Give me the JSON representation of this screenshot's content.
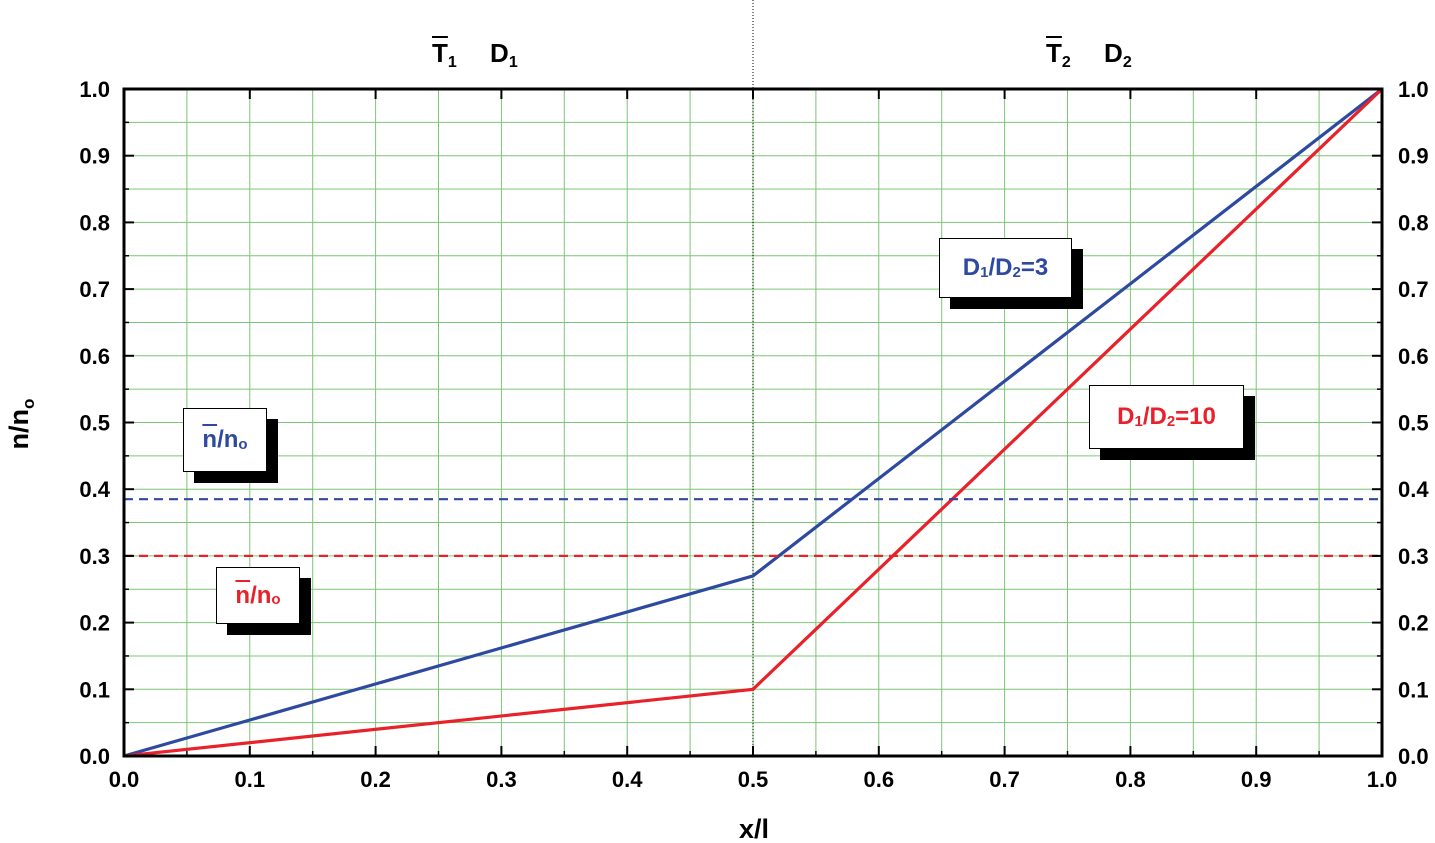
{
  "chart_data": {
    "type": "line",
    "xlabel": "x/l",
    "ylabel": "n/n",
    "ylabel_sub": "o",
    "xlim": [
      0.0,
      1.0
    ],
    "ylim": [
      0.0,
      1.0
    ],
    "x_ticks": [
      "0.0",
      "0.1",
      "0.2",
      "0.3",
      "0.4",
      "0.5",
      "0.6",
      "0.7",
      "0.8",
      "0.9",
      "1.0"
    ],
    "y_ticks": [
      "0.0",
      "0.1",
      "0.2",
      "0.3",
      "0.4",
      "0.5",
      "0.6",
      "0.7",
      "0.8",
      "0.9",
      "1.0"
    ],
    "grid": true,
    "colors": {
      "blue": "#2e4aa0",
      "red": "#e8212a",
      "grid": "#7cc576"
    },
    "series": [
      {
        "color": "#2e4aa0",
        "style": "solid",
        "x": [
          0.0,
          0.5,
          1.0
        ],
        "y": [
          0.0,
          0.27,
          1.0
        ]
      },
      {
        "color": "#e8212a",
        "style": "solid",
        "x": [
          0.0,
          0.5,
          1.0
        ],
        "y": [
          0.0,
          0.1,
          1.0
        ]
      },
      {
        "color": "#2e4aa0",
        "style": "dashed",
        "x": [
          0.0,
          1.0
        ],
        "y": [
          0.385,
          0.385
        ]
      },
      {
        "color": "#e8212a",
        "style": "dashed",
        "x": [
          0.0,
          1.0
        ],
        "y": [
          0.3,
          0.3
        ]
      }
    ],
    "vertical_marker_x": 0.5,
    "regions": {
      "left": {
        "T": "T",
        "T_sub": "1",
        "D": "D",
        "D_sub": "1"
      },
      "right": {
        "T": "T",
        "T_sub": "2",
        "D": "D",
        "D_sub": "2"
      }
    },
    "labels": {
      "blue_line": {
        "a": "D",
        "a_sub": "1",
        "sep": "/D",
        "b_sub": "2",
        "rest": "=3"
      },
      "red_line": {
        "a": "D",
        "a_sub": "1",
        "sep": "/D",
        "b_sub": "2",
        "rest": "=10"
      },
      "blue_mean": {
        "n": "n",
        "rest": "/n",
        "sub": "o"
      },
      "red_mean": {
        "n": "n",
        "rest": "/n",
        "sub": "o"
      }
    }
  }
}
